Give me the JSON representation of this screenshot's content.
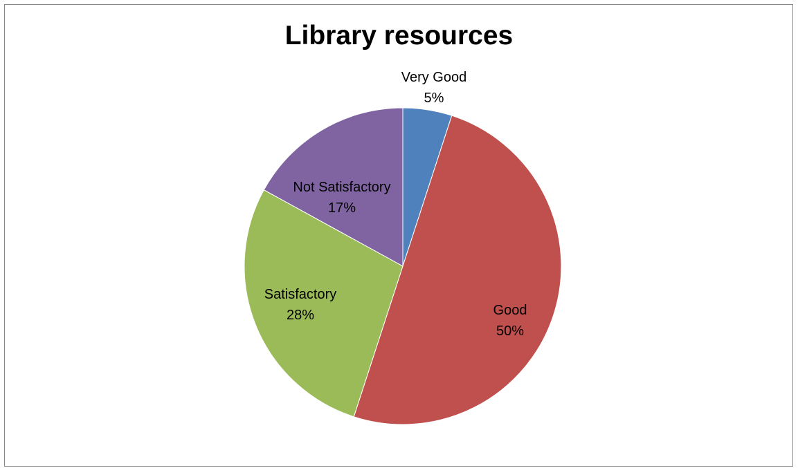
{
  "chart_data": {
    "type": "pie",
    "title": "Library resources",
    "slices": [
      {
        "category": "Very Good",
        "value": 5,
        "label": "5%",
        "color": "#4F81BD"
      },
      {
        "category": "Good",
        "value": 50,
        "label": "50%",
        "color": "#C0504D"
      },
      {
        "category": "Satisfactory",
        "value": 28,
        "label": "28%",
        "color": "#9BBB59"
      },
      {
        "category": "Not Satisfactory",
        "value": 17,
        "label": "17%",
        "color": "#8064A2"
      }
    ],
    "start_angle_deg": 0,
    "direction": "clockwise",
    "legend": "none",
    "data_labels": "category and percentage"
  }
}
